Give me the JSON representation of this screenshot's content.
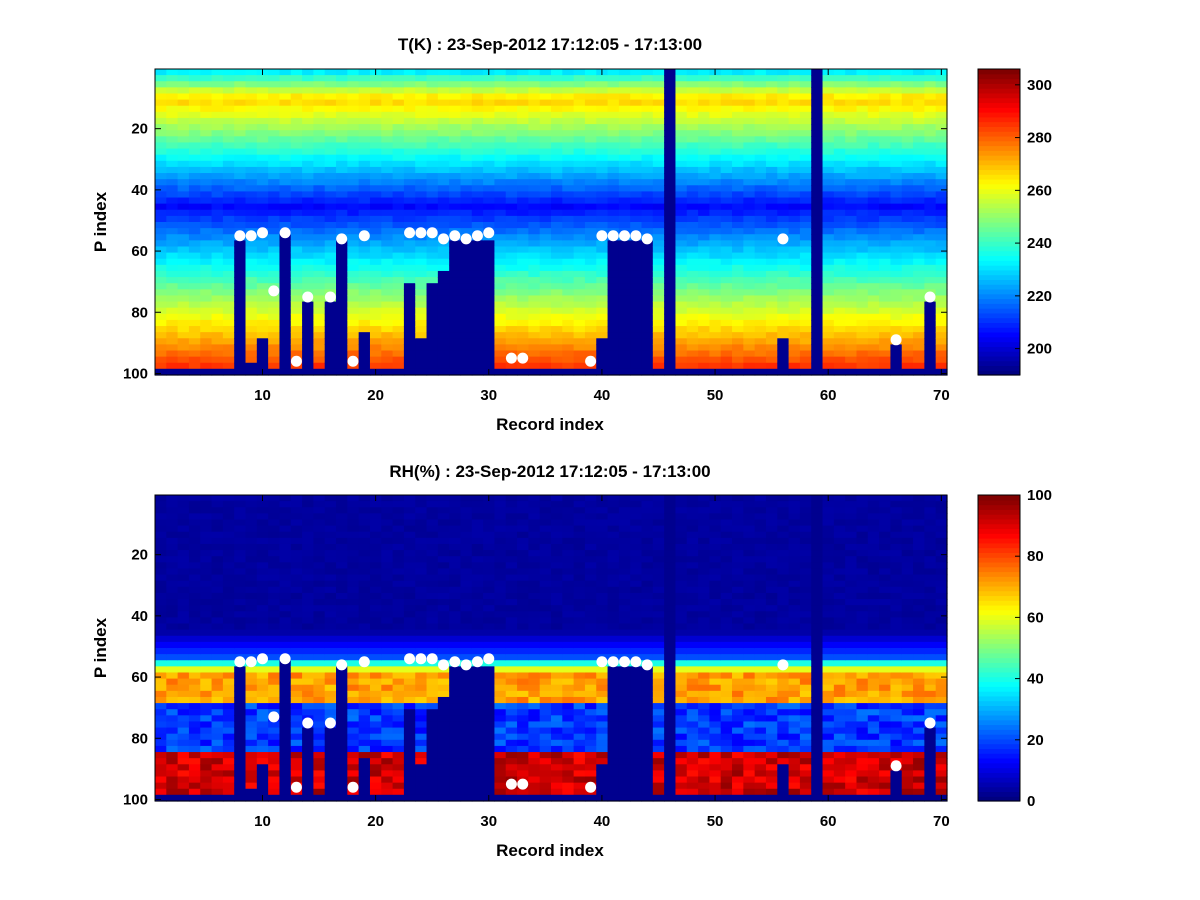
{
  "chart_data": [
    {
      "type": "heatmap",
      "title": "T(K) : 23-Sep-2012 17:12:05 - 17:13:00",
      "xlabel": "Record index",
      "ylabel": "P index",
      "xlim": [
        0.5,
        70.5
      ],
      "ylim": [
        0.5,
        100.5
      ],
      "y_reversed": true,
      "x_ticks": [
        10,
        20,
        30,
        40,
        50,
        60,
        70
      ],
      "y_ticks": [
        20,
        40,
        60,
        80,
        100
      ],
      "colorbar": {
        "min": 190,
        "max": 306,
        "ticks": [
          200,
          220,
          240,
          260,
          280,
          300
        ]
      },
      "profile": {
        "tropopause_level": 10,
        "tropopause_value": 268,
        "upper_value": 228,
        "min_level": 45,
        "min_value": 205,
        "surface_value": 290
      },
      "colors": {
        "below_surface": "#00008f"
      },
      "surface_level": [
        98,
        98,
        98,
        98,
        98,
        98,
        98,
        55,
        96,
        88,
        98,
        54,
        98,
        76,
        98,
        76,
        56,
        98,
        86,
        98,
        98,
        98,
        69,
        88,
        70,
        66,
        56,
        56,
        56,
        55,
        98,
        98,
        98,
        98,
        98,
        98,
        98,
        98,
        98,
        88,
        55,
        55,
        55,
        55,
        98,
        0,
        98,
        98,
        98,
        98,
        98,
        98,
        98,
        98,
        98,
        88,
        98,
        98,
        0,
        98,
        98,
        98,
        98,
        98,
        98,
        90,
        98,
        98,
        76,
        98
      ],
      "markers": [
        {
          "x": 8,
          "y": 55
        },
        {
          "x": 9,
          "y": 55
        },
        {
          "x": 10,
          "y": 54
        },
        {
          "x": 11,
          "y": 73
        },
        {
          "x": 12,
          "y": 54
        },
        {
          "x": 13,
          "y": 96
        },
        {
          "x": 14,
          "y": 75
        },
        {
          "x": 16,
          "y": 75
        },
        {
          "x": 17,
          "y": 56
        },
        {
          "x": 18,
          "y": 96
        },
        {
          "x": 19,
          "y": 55
        },
        {
          "x": 23,
          "y": 54
        },
        {
          "x": 24,
          "y": 54
        },
        {
          "x": 25,
          "y": 54
        },
        {
          "x": 26,
          "y": 56
        },
        {
          "x": 27,
          "y": 55
        },
        {
          "x": 28,
          "y": 56
        },
        {
          "x": 29,
          "y": 55
        },
        {
          "x": 30,
          "y": 54
        },
        {
          "x": 32,
          "y": 95
        },
        {
          "x": 33,
          "y": 95
        },
        {
          "x": 39,
          "y": 96
        },
        {
          "x": 40,
          "y": 55
        },
        {
          "x": 41,
          "y": 55
        },
        {
          "x": 42,
          "y": 55
        },
        {
          "x": 43,
          "y": 55
        },
        {
          "x": 44,
          "y": 56
        },
        {
          "x": 56,
          "y": 56
        },
        {
          "x": 66,
          "y": 89
        },
        {
          "x": 69,
          "y": 75
        }
      ]
    },
    {
      "type": "heatmap",
      "title": "RH(%) : 23-Sep-2012 17:12:05 - 17:13:00",
      "xlabel": "Record index",
      "ylabel": "P index",
      "xlim": [
        0.5,
        70.5
      ],
      "ylim": [
        0.5,
        100.5
      ],
      "y_reversed": true,
      "x_ticks": [
        10,
        20,
        30,
        40,
        50,
        60,
        70
      ],
      "y_ticks": [
        20,
        40,
        60,
        80,
        100
      ],
      "colorbar": {
        "min": 0,
        "max": 100,
        "ticks": [
          0,
          20,
          40,
          60,
          80,
          100
        ]
      },
      "profile": {
        "dry_until_level": 45,
        "moist_layer_top": 58,
        "moist_layer_bottom": 68,
        "moist_layer_value": 72,
        "mid_value": 12,
        "near_surface_top": 85,
        "near_surface_value": 92
      },
      "colors": {
        "below_surface": "#00008f"
      },
      "surface_level": [
        98,
        98,
        98,
        98,
        98,
        98,
        98,
        55,
        96,
        88,
        98,
        54,
        98,
        76,
        98,
        76,
        56,
        98,
        86,
        98,
        98,
        98,
        69,
        88,
        70,
        66,
        56,
        56,
        56,
        55,
        98,
        98,
        98,
        98,
        98,
        98,
        98,
        98,
        98,
        88,
        55,
        55,
        55,
        55,
        98,
        0,
        98,
        98,
        98,
        98,
        98,
        98,
        98,
        98,
        98,
        88,
        98,
        98,
        0,
        98,
        98,
        98,
        98,
        98,
        98,
        90,
        98,
        98,
        76,
        98
      ],
      "markers": [
        {
          "x": 8,
          "y": 55
        },
        {
          "x": 9,
          "y": 55
        },
        {
          "x": 10,
          "y": 54
        },
        {
          "x": 11,
          "y": 73
        },
        {
          "x": 12,
          "y": 54
        },
        {
          "x": 13,
          "y": 96
        },
        {
          "x": 14,
          "y": 75
        },
        {
          "x": 16,
          "y": 75
        },
        {
          "x": 17,
          "y": 56
        },
        {
          "x": 18,
          "y": 96
        },
        {
          "x": 19,
          "y": 55
        },
        {
          "x": 23,
          "y": 54
        },
        {
          "x": 24,
          "y": 54
        },
        {
          "x": 25,
          "y": 54
        },
        {
          "x": 26,
          "y": 56
        },
        {
          "x": 27,
          "y": 55
        },
        {
          "x": 28,
          "y": 56
        },
        {
          "x": 29,
          "y": 55
        },
        {
          "x": 30,
          "y": 54
        },
        {
          "x": 32,
          "y": 95
        },
        {
          "x": 33,
          "y": 95
        },
        {
          "x": 39,
          "y": 96
        },
        {
          "x": 40,
          "y": 55
        },
        {
          "x": 41,
          "y": 55
        },
        {
          "x": 42,
          "y": 55
        },
        {
          "x": 43,
          "y": 55
        },
        {
          "x": 44,
          "y": 56
        },
        {
          "x": 56,
          "y": 56
        },
        {
          "x": 66,
          "y": 89
        },
        {
          "x": 69,
          "y": 75
        }
      ]
    }
  ]
}
